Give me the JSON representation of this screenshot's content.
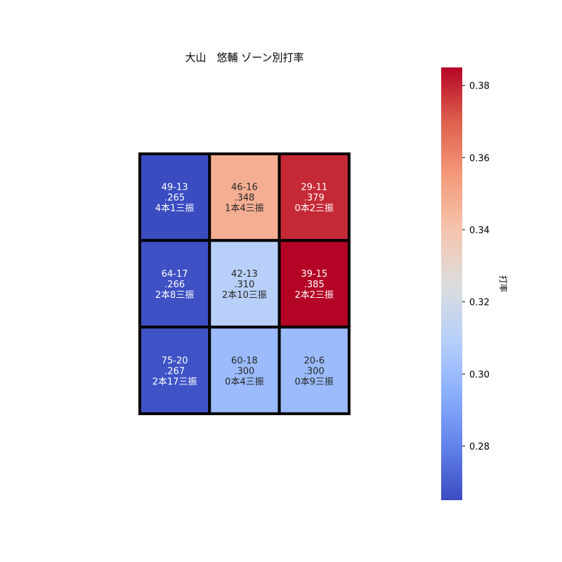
{
  "chart_data": {
    "type": "heatmap",
    "title": "大山　悠輔 ゾーン別打率",
    "rows": [
      [
        {
          "ab_hits": "49-13",
          "avg_label": ".265",
          "avg": 0.265,
          "detail": "4本1三振"
        },
        {
          "ab_hits": "46-16",
          "avg_label": ".348",
          "avg": 0.348,
          "detail": "1本4三振"
        },
        {
          "ab_hits": "29-11",
          "avg_label": ".379",
          "avg": 0.379,
          "detail": "0本2三振"
        }
      ],
      [
        {
          "ab_hits": "64-17",
          "avg_label": ".266",
          "avg": 0.266,
          "detail": "2本8三振"
        },
        {
          "ab_hits": "42-13",
          "avg_label": ".310",
          "avg": 0.31,
          "detail": "2本10三振"
        },
        {
          "ab_hits": "39-15",
          "avg_label": ".385",
          "avg": 0.385,
          "detail": "2本2三振"
        }
      ],
      [
        {
          "ab_hits": "75-20",
          "avg_label": ".267",
          "avg": 0.267,
          "detail": "2本17三振"
        },
        {
          "ab_hits": "60-18",
          "avg_label": ".300",
          "avg": 0.3,
          "detail": "0本4三振"
        },
        {
          "ab_hits": "20-6",
          "avg_label": ".300",
          "avg": 0.3,
          "detail": "0本9三振"
        }
      ]
    ],
    "colorbar": {
      "label": "打率",
      "min": 0.265,
      "max": 0.385,
      "ticks": [
        0.28,
        0.3,
        0.32,
        0.34,
        0.36,
        0.38
      ],
      "tick_labels": [
        "0.28",
        "0.30",
        "0.32",
        "0.34",
        "0.36",
        "0.38"
      ],
      "colormap": "coolwarm"
    },
    "grid_color": "#000000"
  }
}
